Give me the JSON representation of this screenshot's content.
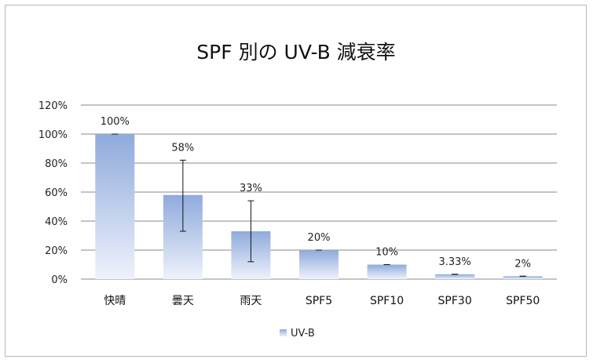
{
  "chart_data": {
    "type": "bar",
    "title": "SPF 別の UV-B 減衰率",
    "categories": [
      "快晴",
      "曇天",
      "雨天",
      "SPF5",
      "SPF10",
      "SPF30",
      "SPF50"
    ],
    "series": [
      {
        "name": "UV-B",
        "values": [
          100,
          58,
          33,
          20,
          10,
          3.33,
          2
        ],
        "data_labels": [
          "100%",
          "58%",
          "33%",
          "20%",
          "10%",
          "3.33%",
          "2%"
        ],
        "error_low": [
          100,
          33,
          12,
          20,
          10,
          3.33,
          2
        ],
        "error_high": [
          100,
          82,
          54,
          20,
          10,
          3.33,
          2
        ]
      }
    ],
    "y_ticks": [
      0,
      20,
      40,
      60,
      80,
      100,
      120
    ],
    "y_tick_labels": [
      "0%",
      "20%",
      "40%",
      "60%",
      "80%",
      "100%",
      "120%"
    ],
    "ylim": [
      0,
      120
    ],
    "grid": true,
    "legend": "bottom",
    "colors": {
      "bar_top": "#8faadc",
      "bar_bottom": "#eef2fb",
      "grid": "#8a8a8a",
      "error_bar": "#111111"
    }
  }
}
